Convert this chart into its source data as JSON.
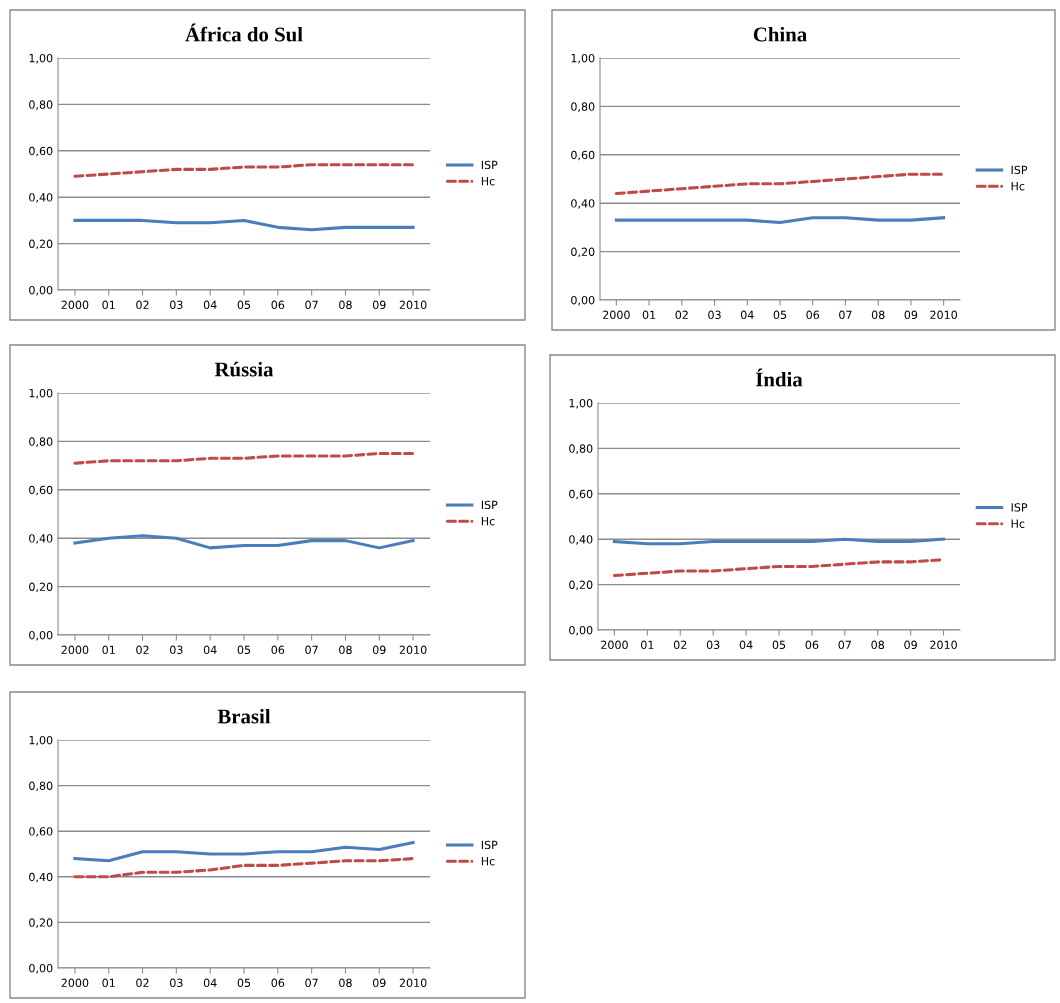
{
  "chart_data": [
    {
      "type": "line",
      "title": "África do Sul",
      "categories": [
        "2000",
        "01",
        "02",
        "03",
        "04",
        "05",
        "06",
        "07",
        "08",
        "09",
        "2010"
      ],
      "ylim": [
        0,
        1
      ],
      "yticks": [
        {
          "value": 0,
          "label": "0,00"
        },
        {
          "value": 0.2,
          "label": "0,20"
        },
        {
          "value": 0.4,
          "label": "0,40"
        },
        {
          "value": 0.6,
          "label": "0,60"
        },
        {
          "value": 0.8,
          "label": "0,80"
        },
        {
          "value": 1,
          "label": "1,00"
        }
      ],
      "grid": "y",
      "legend": "right",
      "series": [
        {
          "name": "ISP",
          "color": "#4a7ebb",
          "line_style": "solid",
          "values": [
            0.3,
            0.3,
            0.3,
            0.29,
            0.29,
            0.3,
            0.27,
            0.26,
            0.27,
            0.27,
            0.27
          ]
        },
        {
          "name": "Hc",
          "color": "#be4b48",
          "line_style": "dashed",
          "values": [
            0.49,
            0.5,
            0.51,
            0.52,
            0.52,
            0.53,
            0.53,
            0.54,
            0.54,
            0.54,
            0.54
          ]
        }
      ]
    },
    {
      "type": "line",
      "title": "China",
      "categories": [
        "2000",
        "01",
        "02",
        "03",
        "04",
        "05",
        "06",
        "07",
        "08",
        "09",
        "2010"
      ],
      "ylim": [
        0,
        1
      ],
      "yticks": [
        {
          "value": 0,
          "label": "0,00"
        },
        {
          "value": 0.2,
          "label": "0,20"
        },
        {
          "value": 0.4,
          "label": "0,40"
        },
        {
          "value": 0.6,
          "label": "0,60"
        },
        {
          "value": 0.8,
          "label": "0,80"
        },
        {
          "value": 1,
          "label": "1,00"
        }
      ],
      "grid": "y",
      "legend": "right",
      "series": [
        {
          "name": "ISP",
          "color": "#4a7ebb",
          "line_style": "solid",
          "values": [
            0.33,
            0.33,
            0.33,
            0.33,
            0.33,
            0.32,
            0.34,
            0.34,
            0.33,
            0.33,
            0.34
          ]
        },
        {
          "name": "Hc",
          "color": "#be4b48",
          "line_style": "dashed",
          "values": [
            0.44,
            0.45,
            0.46,
            0.47,
            0.48,
            0.48,
            0.49,
            0.5,
            0.51,
            0.52,
            0.52
          ]
        }
      ]
    },
    {
      "type": "line",
      "title": "Rússia",
      "categories": [
        "2000",
        "01",
        "02",
        "03",
        "04",
        "05",
        "06",
        "07",
        "08",
        "09",
        "2010"
      ],
      "ylim": [
        0,
        1
      ],
      "yticks": [
        {
          "value": 0,
          "label": "0,00"
        },
        {
          "value": 0.2,
          "label": "0,20"
        },
        {
          "value": 0.4,
          "label": "0,40"
        },
        {
          "value": 0.6,
          "label": "0,60"
        },
        {
          "value": 0.8,
          "label": "0,80"
        },
        {
          "value": 1,
          "label": "1,00"
        }
      ],
      "grid": "y",
      "legend": "right",
      "series": [
        {
          "name": "ISP",
          "color": "#4a7ebb",
          "line_style": "solid",
          "values": [
            0.38,
            0.4,
            0.41,
            0.4,
            0.36,
            0.37,
            0.37,
            0.39,
            0.39,
            0.36,
            0.39
          ]
        },
        {
          "name": "Hc",
          "color": "#be4b48",
          "line_style": "dashed",
          "values": [
            0.71,
            0.72,
            0.72,
            0.72,
            0.73,
            0.73,
            0.74,
            0.74,
            0.74,
            0.75,
            0.75
          ]
        }
      ]
    },
    {
      "type": "line",
      "title": "Índia",
      "categories": [
        "2000",
        "01",
        "02",
        "03",
        "04",
        "05",
        "06",
        "07",
        "08",
        "09",
        "2010"
      ],
      "ylim": [
        0,
        1
      ],
      "yticks": [
        {
          "value": 0,
          "label": "0,00"
        },
        {
          "value": 0.2,
          "label": "0,20"
        },
        {
          "value": 0.4,
          "label": "0,40"
        },
        {
          "value": 0.6,
          "label": "0,60"
        },
        {
          "value": 0.8,
          "label": "0,80"
        },
        {
          "value": 1,
          "label": "1,00"
        }
      ],
      "grid": "y",
      "legend": "right",
      "series": [
        {
          "name": "ISP",
          "color": "#4a7ebb",
          "line_style": "solid",
          "values": [
            0.39,
            0.38,
            0.38,
            0.39,
            0.39,
            0.39,
            0.39,
            0.4,
            0.39,
            0.39,
            0.4
          ]
        },
        {
          "name": "Hc",
          "color": "#be4b48",
          "line_style": "dashed",
          "values": [
            0.24,
            0.25,
            0.26,
            0.26,
            0.27,
            0.28,
            0.28,
            0.29,
            0.3,
            0.3,
            0.31
          ]
        }
      ]
    },
    {
      "type": "line",
      "title": "Brasil",
      "categories": [
        "2000",
        "01",
        "02",
        "03",
        "04",
        "05",
        "06",
        "07",
        "08",
        "09",
        "2010"
      ],
      "ylim": [
        0,
        1
      ],
      "yticks": [
        {
          "value": 0,
          "label": "0,00"
        },
        {
          "value": 0.2,
          "label": "0,20"
        },
        {
          "value": 0.4,
          "label": "0,40"
        },
        {
          "value": 0.6,
          "label": "0,60"
        },
        {
          "value": 0.8,
          "label": "0,80"
        },
        {
          "value": 1,
          "label": "1,00"
        }
      ],
      "grid": "y",
      "legend": "right",
      "series": [
        {
          "name": "ISP",
          "color": "#4a7ebb",
          "line_style": "solid",
          "values": [
            0.48,
            0.47,
            0.51,
            0.51,
            0.5,
            0.5,
            0.51,
            0.51,
            0.53,
            0.52,
            0.55
          ]
        },
        {
          "name": "Hc",
          "color": "#be4b48",
          "line_style": "dashed",
          "values": [
            0.4,
            0.4,
            0.42,
            0.42,
            0.43,
            0.45,
            0.45,
            0.46,
            0.47,
            0.47,
            0.48
          ]
        }
      ]
    }
  ]
}
